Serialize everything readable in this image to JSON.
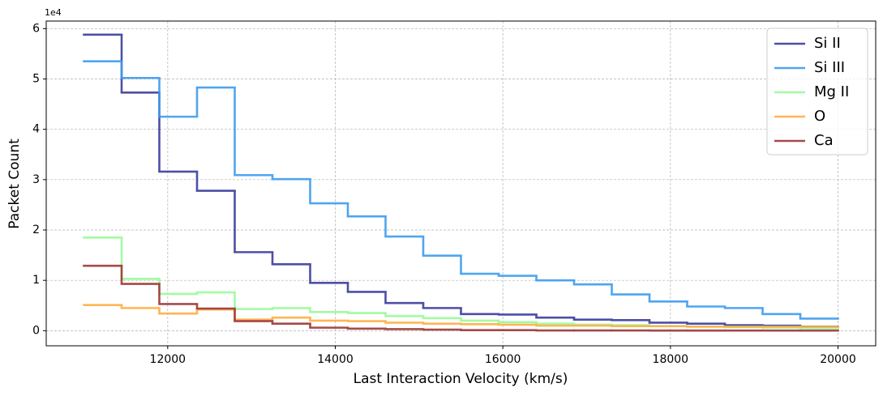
{
  "chart_data": {
    "type": "histogram",
    "x_label": "Last Interaction Velocity (km/s)",
    "y_label": "Packet Count",
    "y_offset_label": "1e4",
    "bins": [
      11000,
      11450,
      11900,
      12350,
      12800,
      13250,
      13700,
      14150,
      14600,
      15050,
      15500,
      15950,
      16400,
      16850,
      17300,
      17750,
      18200,
      18650,
      19100,
      19550,
      20000
    ],
    "series": [
      {
        "name": "Si II",
        "color": "#3a3c9c",
        "values": [
          58800,
          47300,
          31600,
          27800,
          15600,
          13200,
          9500,
          7700,
          5500,
          4500,
          3300,
          3200,
          2600,
          2200,
          2100,
          1600,
          1400,
          1100,
          1000,
          800
        ]
      },
      {
        "name": "Si III",
        "color": "#3d9cee",
        "values": [
          53500,
          50200,
          42500,
          48300,
          30900,
          30100,
          25300,
          22700,
          18700,
          14900,
          11300,
          10900,
          10000,
          9200,
          7200,
          5800,
          4800,
          4500,
          3300,
          2400
        ]
      },
      {
        "name": "Mg II",
        "color": "#98fb98",
        "values": [
          18500,
          10300,
          7300,
          7600,
          4300,
          4500,
          3700,
          3500,
          2900,
          2500,
          2000,
          1700,
          1400,
          1200,
          1100,
          900,
          800,
          700,
          600,
          500
        ]
      },
      {
        "name": "O",
        "color": "#ffae42",
        "values": [
          5100,
          4500,
          3400,
          4200,
          2200,
          2600,
          2000,
          1900,
          1600,
          1400,
          1300,
          1200,
          1000,
          1000,
          900,
          900,
          800,
          800,
          800,
          800
        ]
      },
      {
        "name": "Ca",
        "color": "#9e3636",
        "values": [
          12900,
          9300,
          5300,
          4400,
          1900,
          1400,
          600,
          400,
          300,
          200,
          100,
          100,
          50,
          50,
          40,
          30,
          30,
          20,
          20,
          20
        ]
      }
    ],
    "xlim": [
      10550,
      20450
    ],
    "ylim": [
      -3000,
      61500
    ],
    "xticks": [
      12000,
      14000,
      16000,
      18000,
      20000
    ],
    "yticks": [
      {
        "value": 0,
        "label": "0"
      },
      {
        "value": 10000,
        "label": "1"
      },
      {
        "value": 20000,
        "label": "2"
      },
      {
        "value": 30000,
        "label": "3"
      },
      {
        "value": 40000,
        "label": "4"
      },
      {
        "value": 50000,
        "label": "5"
      },
      {
        "value": 60000,
        "label": "6"
      }
    ],
    "grid": true,
    "legend": "upper right"
  }
}
